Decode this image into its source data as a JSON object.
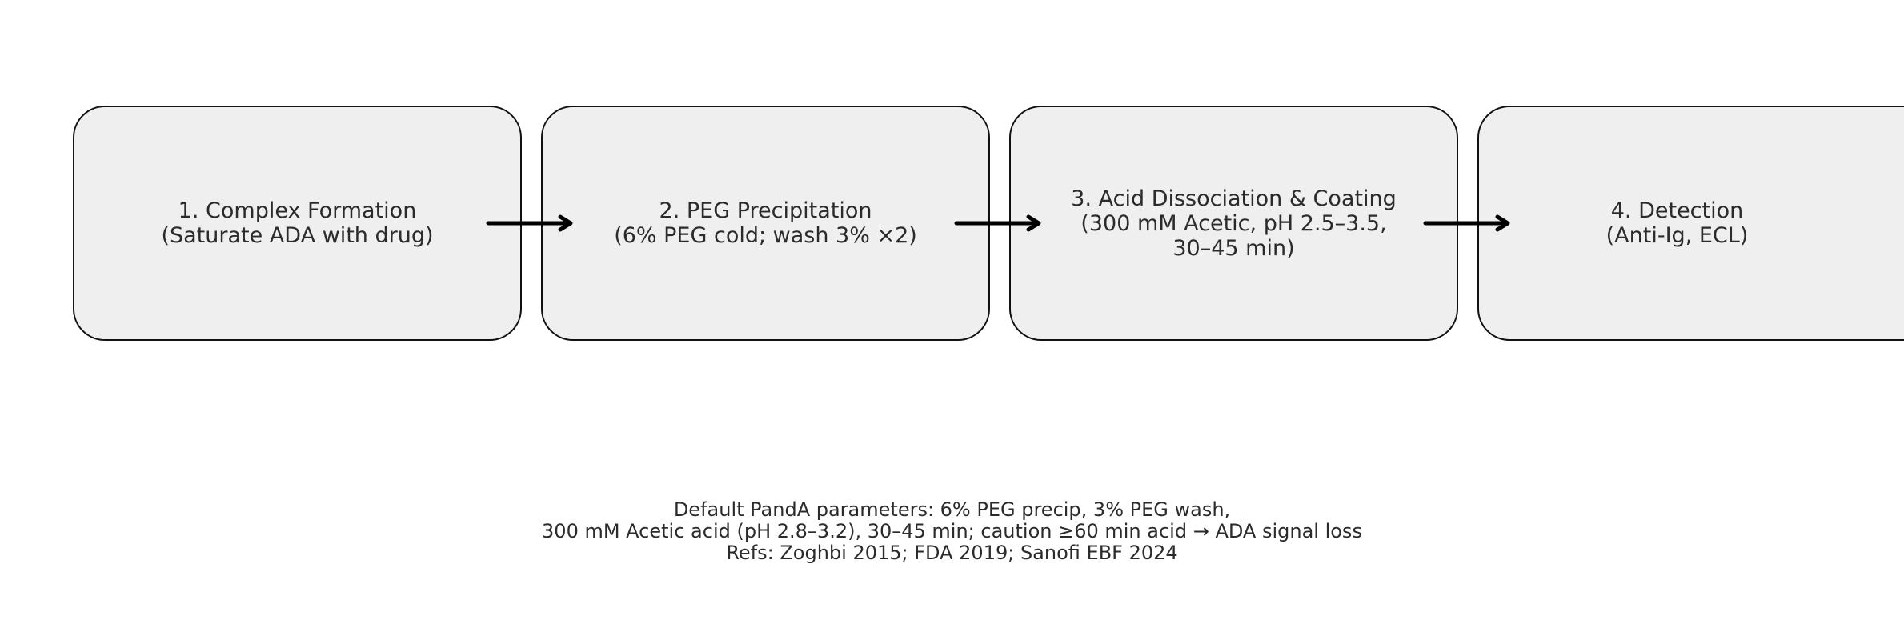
{
  "steps": [
    {
      "line1": "1. Complex Formation",
      "line2": "(Saturate ADA with drug)"
    },
    {
      "line1": "2. PEG Precipitation",
      "line2": "(6% PEG cold; wash 3% ×2)"
    },
    {
      "line1": "3. Acid Dissociation & Coating",
      "line2": "(300 mM Acetic, pH 2.5–3.5,",
      "line3": "30–45 min)"
    },
    {
      "line1": "4. Detection",
      "line2": "(Anti-Ig, ECL)"
    }
  ],
  "footnote": {
    "line1": "Default PandA parameters: 6% PEG precip, 3% PEG wash,",
    "line2": "300 mM Acetic acid (pH 2.8–3.2), 30–45 min; caution ≥60 min acid → ADA signal loss",
    "line3": "Refs: Zoghbi 2015; FDA 2019; Sanofi EBF 2024"
  },
  "colors": {
    "box_fill": "#efefef",
    "box_border": "#111111",
    "arrow": "#000000",
    "text": "#2b2b2b"
  }
}
